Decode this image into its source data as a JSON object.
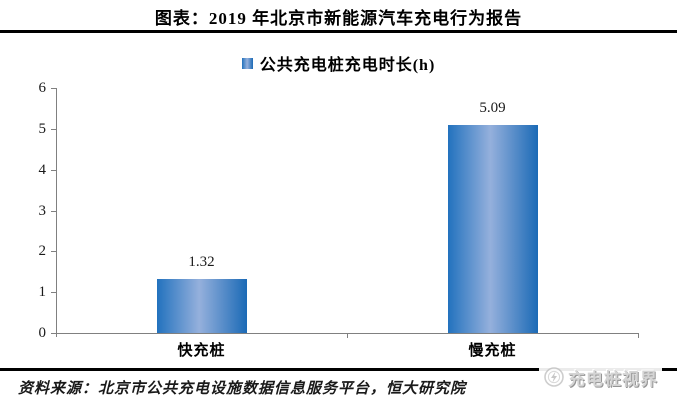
{
  "header": {
    "title": "图表：2019 年北京市新能源汽车充电行为报告"
  },
  "legend": {
    "label": "公共充电桩充电时长(h)"
  },
  "chart_data": {
    "type": "bar",
    "title": "公共充电桩充电时长(h)",
    "categories": [
      "快充桩",
      "慢充桩"
    ],
    "values": [
      1.32,
      5.09
    ],
    "data_labels": [
      "1.32",
      "5.09"
    ],
    "xlabel": "",
    "ylabel": "",
    "ylim": [
      0,
      6
    ],
    "yticks": [
      0,
      1,
      2,
      3,
      4,
      5,
      6
    ],
    "grid": false,
    "legend_position": "top-center",
    "bar_gradient": [
      "#2272be",
      "#95b0dc",
      "#1b6ab6"
    ],
    "axis_color": "#808080",
    "value_label_color": "#1a1a1a"
  },
  "footer": {
    "source": "资料来源：北京市公共充电设施数据信息服务平台，恒大研究院"
  },
  "watermark": {
    "label": "充电桩视界",
    "icon": "lightning-circle-icon"
  }
}
